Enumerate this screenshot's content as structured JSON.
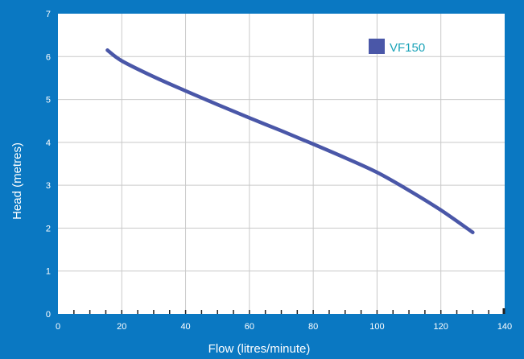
{
  "colors": {
    "background": "#0a78c2",
    "plot_area": "#ffffff",
    "grid": "#c9c9c9",
    "series": "#4a57a8",
    "legend_text": "#1aa3b8",
    "axis_text": "#ffffff"
  },
  "chart_data": {
    "type": "line",
    "title": "",
    "xlabel": "Flow (litres/minute)",
    "ylabel": "Head (metres)",
    "xlim": [
      0,
      140
    ],
    "ylim": [
      0,
      7
    ],
    "xticks": [
      0,
      20,
      40,
      60,
      80,
      100,
      120,
      140
    ],
    "yticks": [
      0,
      1,
      2,
      3,
      4,
      5,
      6,
      7
    ],
    "grid": true,
    "legend": {
      "position": "top-right",
      "entries": [
        "VF150"
      ]
    },
    "series": [
      {
        "name": "VF150",
        "color": "#4a57a8",
        "x": [
          15.5,
          20,
          30,
          40,
          50,
          60,
          70,
          80,
          90,
          100,
          110,
          120,
          130
        ],
        "y": [
          6.15,
          5.9,
          5.53,
          5.2,
          4.88,
          4.57,
          4.27,
          3.96,
          3.64,
          3.3,
          2.88,
          2.42,
          1.9
        ]
      }
    ]
  }
}
